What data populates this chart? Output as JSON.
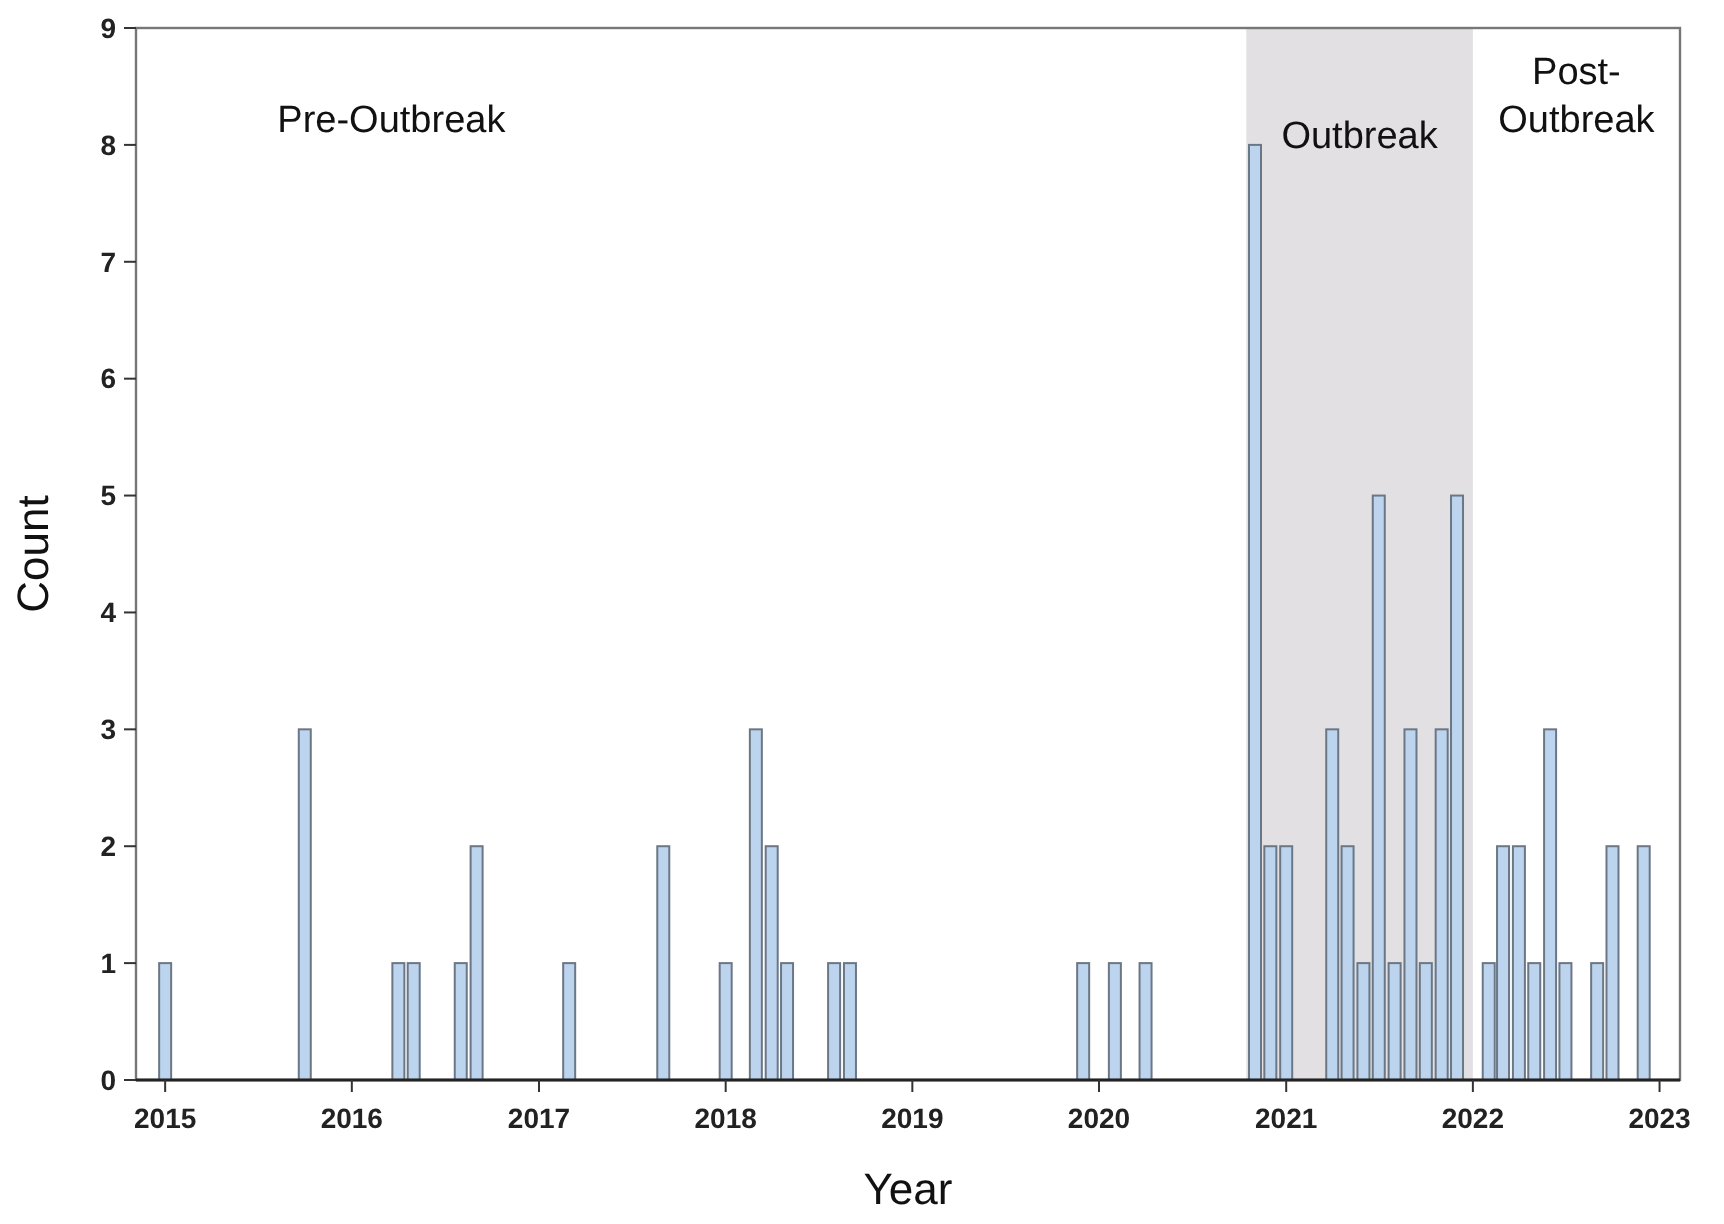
{
  "chart_data": {
    "type": "bar",
    "xlabel": "Year",
    "ylabel": "Count",
    "x": [
      "2015-01",
      "2015-10",
      "2016-04",
      "2016-05",
      "2016-08",
      "2016-09",
      "2017-03",
      "2017-09",
      "2018-01",
      "2018-03",
      "2018-04",
      "2018-05",
      "2018-08",
      "2018-09",
      "2019-12",
      "2020-02",
      "2020-04",
      "2020-11",
      "2020-12",
      "2021-01",
      "2021-04",
      "2021-05",
      "2021-06",
      "2021-07",
      "2021-08",
      "2021-09",
      "2021-10",
      "2021-11",
      "2021-12",
      "2022-02",
      "2022-03",
      "2022-04",
      "2022-05",
      "2022-06",
      "2022-07",
      "2022-09",
      "2022-10",
      "2022-12"
    ],
    "values": [
      1,
      3,
      1,
      1,
      1,
      2,
      1,
      2,
      1,
      3,
      2,
      1,
      1,
      1,
      1,
      1,
      1,
      8,
      2,
      2,
      3,
      2,
      1,
      5,
      1,
      3,
      1,
      3,
      5,
      1,
      2,
      2,
      1,
      3,
      1,
      1,
      2,
      2
    ],
    "color": "#bcd4ee",
    "xlim": [
      "2014-11-05",
      "2023-02-10"
    ],
    "xticks": [
      {
        "value": "2015",
        "label": "2015"
      },
      {
        "value": "2016",
        "label": "2016"
      },
      {
        "value": "2017",
        "label": "2017"
      },
      {
        "value": "2018",
        "label": "2018"
      },
      {
        "value": "2019",
        "label": "2019"
      },
      {
        "value": "2020",
        "label": "2020"
      },
      {
        "value": "2021",
        "label": "2021"
      },
      {
        "value": "2022",
        "label": "2022"
      },
      {
        "value": "2023",
        "label": "2023"
      }
    ],
    "ylim": [
      0,
      9
    ],
    "yticks": [
      0,
      1,
      2,
      3,
      4,
      5,
      6,
      7,
      8,
      9
    ],
    "bands": [
      {
        "axis": "x",
        "from": "2020-10-15",
        "to": "2022-01-01",
        "label": "Outbreak",
        "color": "#e2e0e2"
      }
    ],
    "annotations": [
      "Pre-Outbreak",
      "Post-Outbreak"
    ],
    "grid": false
  }
}
